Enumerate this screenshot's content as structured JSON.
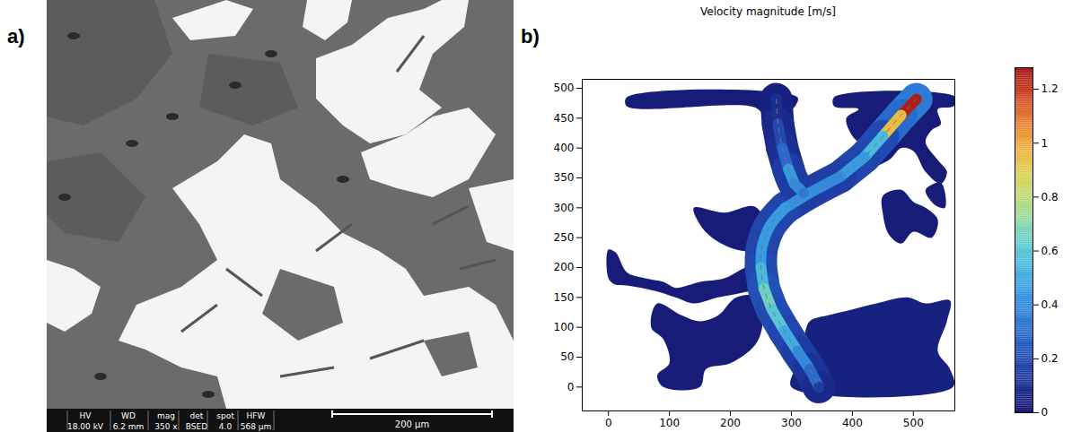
{
  "panel_a": {
    "label": "a)",
    "scale_bar": "200 µm",
    "info_bar": [
      {
        "name": "HV",
        "value": "18.00 kV"
      },
      {
        "name": "WD",
        "value": "6.2 mm"
      },
      {
        "name": "mag",
        "value": "350 x"
      },
      {
        "name": "det",
        "value": "BSED"
      },
      {
        "name": "spot",
        "value": "4.0"
      },
      {
        "name": "HFW",
        "value": "568 µm"
      }
    ]
  },
  "chart_data": {
    "type": "field",
    "label": "b)",
    "title": "Velocity magnitude [m/s]",
    "xlim": [
      -43,
      568
    ],
    "ylim": [
      -40,
      515
    ],
    "xticks": [
      0,
      100,
      200,
      300,
      400,
      500
    ],
    "yticks": [
      0,
      50,
      100,
      150,
      200,
      250,
      300,
      350,
      400,
      450,
      500
    ],
    "regions": [
      {
        "x": [
          30,
          310,
          306,
          292,
          300,
          312,
          322,
          296,
          286,
          272,
          256,
          240,
          30
        ],
        "y": [
          485,
          485,
          470,
          455,
          400,
          350,
          322,
          316,
          350,
          400,
          450,
          468,
          470
        ],
        "speed": 0.03
      },
      {
        "x": [
          370,
          570,
          566,
          540,
          545,
          530,
          520,
          540,
          555,
          545,
          520,
          500,
          480,
          460,
          430,
          420,
          400,
          390,
          410,
          370
        ],
        "y": [
          485,
          485,
          470,
          465,
          440,
          430,
          410,
          380,
          360,
          340,
          360,
          395,
          400,
          380,
          370,
          400,
          420,
          450,
          465,
          470
        ],
        "speed": 0.03
      },
      {
        "x": [
          0,
          12,
          30,
          60,
          90,
          110,
          130,
          150,
          190,
          230,
          255,
          255,
          220,
          180,
          140,
          110,
          80,
          30,
          10,
          0
        ],
        "y": [
          230,
          225,
          192,
          182,
          176,
          166,
          170,
          176,
          182,
          202,
          202,
          168,
          158,
          150,
          140,
          150,
          160,
          170,
          172,
          182
        ],
        "speed": 0.03
      },
      {
        "x": [
          140,
          190,
          240,
          262,
          252,
          210,
          170,
          150
        ],
        "y": [
          300,
          292,
          302,
          262,
          230,
          230,
          250,
          272
        ],
        "speed": 0.03
      },
      {
        "x": [
          90,
          150,
          160,
          200,
          240,
          252,
          250,
          210,
          180,
          150,
          120,
          80,
          70,
          90,
          100,
          80
        ],
        "y": [
          0,
          0,
          30,
          40,
          70,
          100,
          150,
          150,
          120,
          110,
          120,
          140,
          100,
          80,
          40,
          20
        ],
        "speed": 0.03
      },
      {
        "x": [
          300,
          565,
          560,
          540,
          555,
          560,
          520,
          490,
          440,
          400,
          360,
          330,
          320,
          310
        ],
        "y": [
          0,
          0,
          30,
          60,
          110,
          145,
          140,
          150,
          140,
          130,
          120,
          110,
          80,
          40
        ],
        "speed": 0.05
      },
      {
        "x": [
          450,
          480,
          500,
          520,
          540,
          530,
          500,
          480,
          460,
          450
        ],
        "y": [
          320,
          330,
          310,
          300,
          280,
          250,
          260,
          240,
          255,
          290
        ],
        "speed": 0.03
      },
      {
        "x": [
          520,
          545,
          552,
          535
        ],
        "y": [
          330,
          342,
          300,
          305
        ],
        "speed": 0.03
      }
    ],
    "channels": [
      {
        "x": [
          505,
          480,
          450,
          420,
          380,
          330,
          290,
          265,
          252,
          250,
          255,
          268,
          288,
          310,
          330,
          345
        ],
        "y": [
          482,
          455,
          420,
          385,
          352,
          325,
          300,
          270,
          235,
          200,
          165,
          130,
          95,
          60,
          30,
          0
        ],
        "speed": [
          1.25,
          0.95,
          0.55,
          0.45,
          0.4,
          0.42,
          0.45,
          0.45,
          0.45,
          0.55,
          0.65,
          0.6,
          0.5,
          0.4,
          0.3,
          0.15
        ],
        "speed_outer": [
          0.35,
          0.3,
          0.2,
          0.18,
          0.16,
          0.16,
          0.18,
          0.18,
          0.18,
          0.2,
          0.22,
          0.2,
          0.18,
          0.15,
          0.12,
          0.08
        ]
      },
      {
        "x": [
          275,
          278,
          285,
          295,
          305,
          320
        ],
        "y": [
          482,
          440,
          400,
          365,
          340,
          325
        ],
        "speed": [
          0.1,
          0.2,
          0.3,
          0.45,
          0.4,
          0.35
        ],
        "speed_outer": [
          0.05,
          0.08,
          0.1,
          0.15,
          0.15,
          0.15
        ]
      }
    ],
    "colorbar": {
      "range": [
        0,
        1.28
      ],
      "ticks": [
        0,
        0.2,
        0.4,
        0.6,
        0.8,
        1,
        1.2
      ]
    }
  }
}
